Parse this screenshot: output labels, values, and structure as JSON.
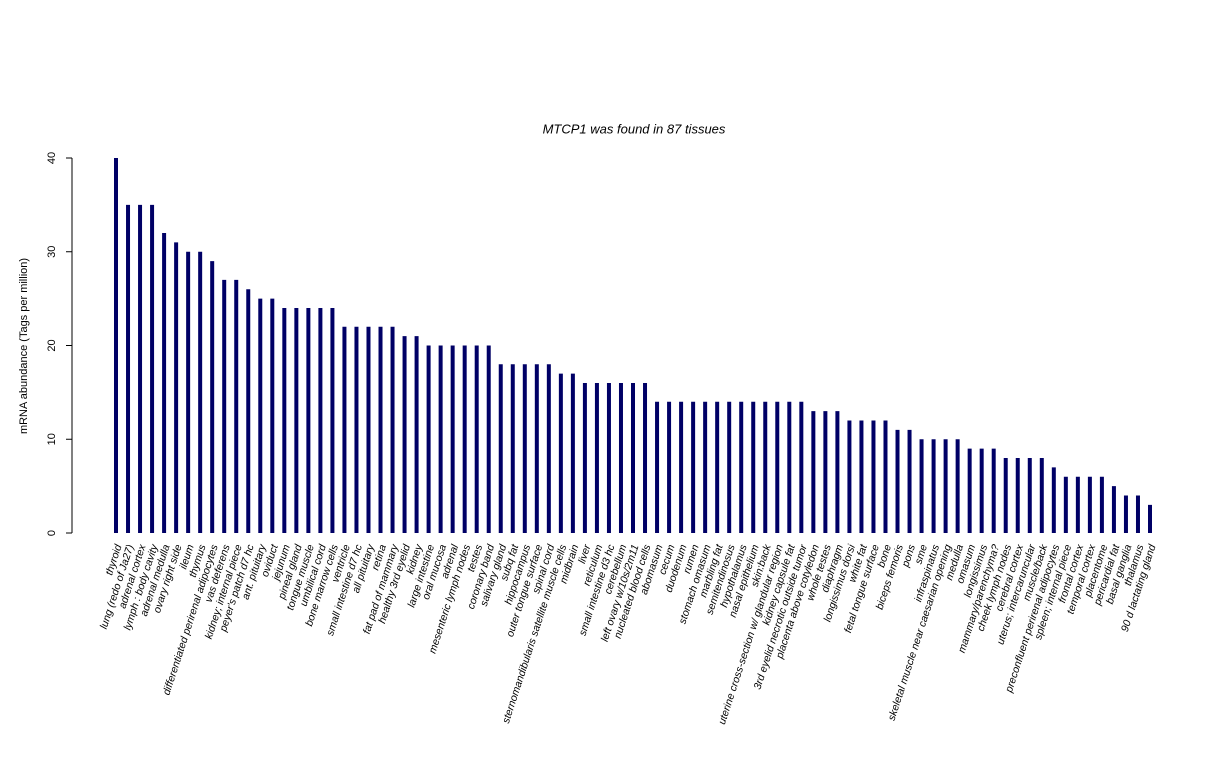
{
  "chart_data": {
    "type": "bar",
    "title": "MTCP1  was found in  87  tissues",
    "ylabel": "mRNA abundance (Tags per million)",
    "categories": [
      "thyroid",
      "lung (redo of Ja27)",
      "adrenal cortex",
      "lymph : body cavity",
      "adrenal medulla",
      "ovary right side",
      "ileum",
      "thymus",
      "differentiated perirenal adipocytes",
      "vas deferens",
      "kidney; internal piece",
      "peyer's patch d7 hc",
      "ant. pituitary",
      "oviduct",
      "jejunum",
      "pineal gland",
      "tongue muscle",
      "umbilical cord",
      "bone marrow cells",
      "ventricle",
      "small intestine d7 hc",
      "all pituitary",
      "retina",
      "fat pad of mammary",
      "healthy 3rd eyelid",
      "kidney",
      "large intestine",
      "oral mucosa",
      "adrenal",
      "mesenteric lymph nodes",
      "testes",
      "coronary band",
      "salivary gland",
      "subq fat",
      "hippocampus",
      "outer tongue surface",
      "spinal cord",
      "sternomandibularis satellite muscle cells",
      "midbrain",
      "liver",
      "reticulum",
      "small intestine d3 hc",
      "cerebellum",
      "left ovary w/10s/2m11",
      "nucleated blood cells",
      "abomasum",
      "cecum",
      "duodenum",
      "rumen",
      "stomach omasum",
      "marbling fat",
      "semitendinosus",
      "hypothalamus",
      "nasal epithelium",
      "skin:back",
      "uterine cross-section w/ glandular region",
      "kidney capsule fat",
      "3rd eyelid necrotic outside tumor",
      "placenta above cotyledon",
      "whole testes",
      "diaphragm",
      "longissimus dorsi",
      "white fat",
      "fetal tongue surface",
      "bone",
      "biceps femoris",
      "pons",
      "sme",
      "infraspinatus",
      "skeletal muscle near caesarian opening",
      "medulla",
      "omasum",
      "longissimus",
      "mammary/parenchyma?",
      "cheek lymph nodes",
      "cerebral cortex",
      "uterus; intercaruncular",
      "muscle/back",
      "preconfluent perirenal adipocytes",
      "spleen; internal piece",
      "frontal cortex",
      "temporal cortex",
      "placentome",
      "pericardial fat",
      "basal ganglia",
      "thalamus",
      "90 d lactating gland"
    ],
    "values": [
      40,
      35,
      35,
      35,
      32,
      31,
      30,
      30,
      29,
      27,
      27,
      26,
      25,
      25,
      24,
      24,
      24,
      24,
      24,
      22,
      22,
      22,
      22,
      22,
      21,
      21,
      20,
      20,
      20,
      20,
      20,
      20,
      18,
      18,
      18,
      18,
      18,
      17,
      17,
      16,
      16,
      16,
      16,
      16,
      16,
      14,
      14,
      14,
      14,
      14,
      14,
      14,
      14,
      14,
      14,
      14,
      14,
      14,
      13,
      13,
      13,
      12,
      12,
      12,
      12,
      11,
      11,
      10,
      10,
      10,
      10,
      9,
      9,
      9,
      8,
      8,
      8,
      8,
      7,
      6,
      6,
      6,
      6,
      5,
      4,
      4,
      3
    ],
    "color": "#000066",
    "ylim": [
      0,
      40
    ],
    "yticks": [
      0,
      10,
      20,
      30,
      40
    ]
  }
}
